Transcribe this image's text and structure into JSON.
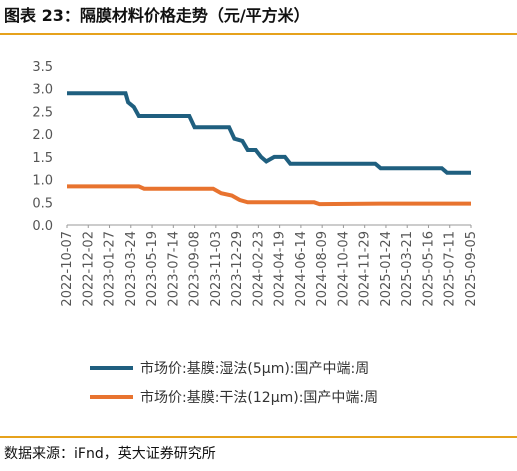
{
  "title": "图表 23：隔膜材料价格走势（元/平方米）",
  "source": "数据来源：iFnd，英大证券研究所",
  "chart_data": {
    "type": "line",
    "title": "",
    "xlabel": "",
    "ylabel": "",
    "ylim": [
      0,
      3.5
    ],
    "yticks": [
      "0.0",
      "0.5",
      "1.0",
      "1.5",
      "2.0",
      "2.5",
      "3.0",
      "3.5"
    ],
    "xticks": [
      "2022-10-07",
      "2022-12-02",
      "2023-01-27",
      "2023-03-24",
      "2023-05-19",
      "2023-07-14",
      "2023-09-08",
      "2023-11-03",
      "2023-12-29",
      "2024-02-23",
      "2024-04-19",
      "2024-06-14",
      "2024-08-09",
      "2024-10-04",
      "2024-11-29",
      "2025-01-24",
      "2025-03-21",
      "2025-05-16",
      "2025-07-11",
      "2025-09-05"
    ],
    "grid": false,
    "legend_position": "bottom",
    "series": [
      {
        "name": "市场价:基膜:湿法(5μm):国产中端:周",
        "color": "#1f5f7f",
        "points": [
          [
            "2022-10-07",
            2.9
          ],
          [
            "2023-02-10",
            2.9
          ],
          [
            "2023-03-10",
            2.9
          ],
          [
            "2023-03-17",
            2.7
          ],
          [
            "2023-04-01",
            2.6
          ],
          [
            "2023-04-14",
            2.4
          ],
          [
            "2023-08-25",
            2.4
          ],
          [
            "2023-09-08",
            2.15
          ],
          [
            "2023-12-08",
            2.15
          ],
          [
            "2023-12-22",
            1.9
          ],
          [
            "2024-01-12",
            1.85
          ],
          [
            "2024-01-26",
            1.65
          ],
          [
            "2024-02-16",
            1.65
          ],
          [
            "2024-03-01",
            1.5
          ],
          [
            "2024-03-15",
            1.4
          ],
          [
            "2024-04-05",
            1.5
          ],
          [
            "2024-05-03",
            1.5
          ],
          [
            "2024-05-17",
            1.35
          ],
          [
            "2024-12-27",
            1.35
          ],
          [
            "2025-01-10",
            1.25
          ],
          [
            "2025-06-20",
            1.25
          ],
          [
            "2025-07-04",
            1.15
          ],
          [
            "2025-09-05",
            1.15
          ]
        ]
      },
      {
        "name": "市场价:基膜:干法(12μm):国产中端:周",
        "color": "#e8732f",
        "points": [
          [
            "2022-10-07",
            0.85
          ],
          [
            "2023-04-14",
            0.85
          ],
          [
            "2023-04-28",
            0.8
          ],
          [
            "2023-10-27",
            0.8
          ],
          [
            "2023-11-17",
            0.7
          ],
          [
            "2023-12-15",
            0.65
          ],
          [
            "2024-01-05",
            0.55
          ],
          [
            "2024-01-26",
            0.5
          ],
          [
            "2024-07-19",
            0.5
          ],
          [
            "2024-08-02",
            0.46
          ],
          [
            "2025-01-10",
            0.47
          ],
          [
            "2025-09-05",
            0.47
          ]
        ]
      }
    ]
  }
}
